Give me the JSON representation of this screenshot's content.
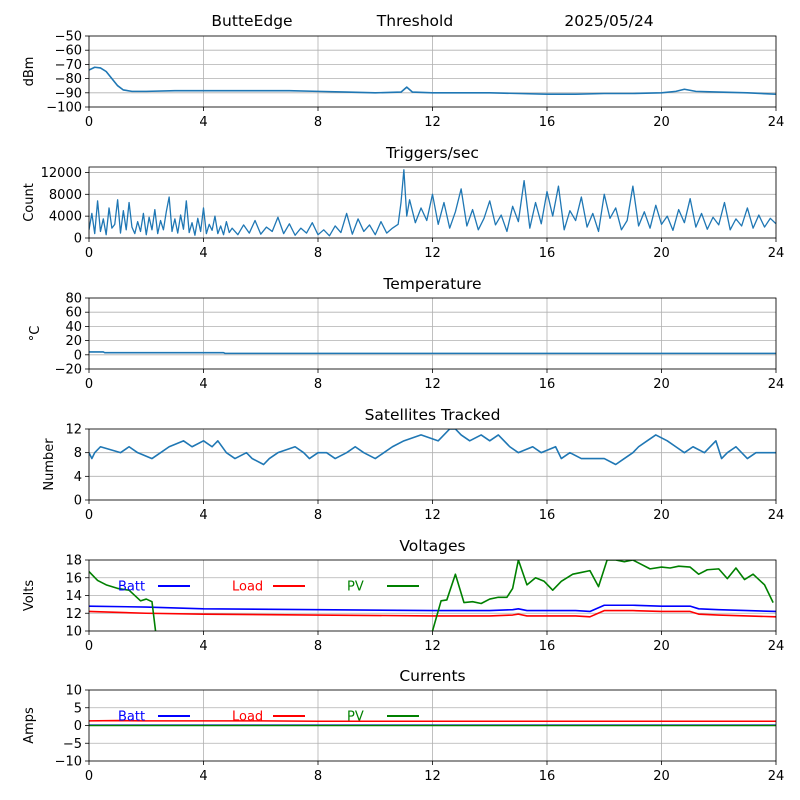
{
  "header": {
    "station": "ButteEdge",
    "label": "Threshold",
    "date": "2025/05/24"
  },
  "chart_data": [
    {
      "id": "threshold",
      "type": "line",
      "title": "",
      "ylabel": "dBm",
      "xlim": [
        0,
        24
      ],
      "xticks": [
        0,
        4,
        8,
        12,
        16,
        20,
        24
      ],
      "ylim": [
        -100,
        -50
      ],
      "yticks": [
        -100,
        -90,
        -80,
        -70,
        -60,
        -50
      ],
      "grid": true,
      "series": [
        {
          "color": "#1f77b4",
          "x": [
            0,
            0.2,
            0.4,
            0.6,
            0.8,
            1.0,
            1.2,
            1.5,
            2,
            3,
            4,
            5,
            6,
            7,
            8,
            9,
            10,
            10.9,
            11.1,
            11.3,
            12,
            13,
            14,
            15,
            16,
            17,
            18,
            19,
            20,
            20.5,
            20.8,
            21.2,
            22,
            23,
            24
          ],
          "y": [
            -74,
            -72,
            -72.5,
            -75,
            -80,
            -85,
            -88,
            -89,
            -89,
            -88.5,
            -88.5,
            -88.5,
            -88.5,
            -88.5,
            -89,
            -89.5,
            -90,
            -89.5,
            -86,
            -89.5,
            -90,
            -90,
            -90,
            -90.5,
            -91,
            -91,
            -90.5,
            -90.5,
            -90,
            -89,
            -87.5,
            -89,
            -89.5,
            -90,
            -91
          ]
        }
      ]
    },
    {
      "id": "triggers",
      "type": "line",
      "title": "Triggers/sec",
      "ylabel": "Count",
      "xlim": [
        0,
        24
      ],
      "xticks": [
        0,
        4,
        8,
        12,
        16,
        20,
        24
      ],
      "ylim": [
        0,
        13000
      ],
      "yticks": [
        0,
        4000,
        8000,
        12000
      ],
      "grid": true,
      "series": [
        {
          "color": "#1f77b4",
          "x": [
            0,
            0.1,
            0.2,
            0.3,
            0.4,
            0.5,
            0.6,
            0.7,
            0.8,
            0.9,
            1.0,
            1.1,
            1.2,
            1.3,
            1.4,
            1.5,
            1.6,
            1.7,
            1.8,
            1.9,
            2.0,
            2.1,
            2.2,
            2.3,
            2.4,
            2.5,
            2.6,
            2.7,
            2.8,
            2.9,
            3.0,
            3.1,
            3.2,
            3.3,
            3.4,
            3.5,
            3.6,
            3.7,
            3.8,
            3.9,
            4.0,
            4.1,
            4.2,
            4.3,
            4.4,
            4.5,
            4.6,
            4.7,
            4.8,
            4.9,
            5.0,
            5.2,
            5.4,
            5.6,
            5.8,
            6.0,
            6.2,
            6.4,
            6.6,
            6.8,
            7.0,
            7.2,
            7.4,
            7.6,
            7.8,
            8.0,
            8.2,
            8.4,
            8.6,
            8.8,
            9.0,
            9.2,
            9.4,
            9.6,
            9.8,
            10.0,
            10.2,
            10.4,
            10.6,
            10.8,
            10.9,
            11.0,
            11.1,
            11.2,
            11.4,
            11.6,
            11.8,
            12.0,
            12.2,
            12.4,
            12.6,
            12.8,
            13.0,
            13.2,
            13.4,
            13.6,
            13.8,
            14.0,
            14.2,
            14.4,
            14.6,
            14.8,
            15.0,
            15.2,
            15.4,
            15.6,
            15.8,
            16.0,
            16.2,
            16.4,
            16.6,
            16.8,
            17.0,
            17.2,
            17.4,
            17.6,
            17.8,
            18.0,
            18.2,
            18.4,
            18.6,
            18.8,
            19.0,
            19.2,
            19.4,
            19.6,
            19.8,
            20.0,
            20.2,
            20.4,
            20.6,
            20.8,
            21.0,
            21.2,
            21.4,
            21.6,
            21.8,
            22.0,
            22.2,
            22.4,
            22.6,
            22.8,
            23.0,
            23.2,
            23.4,
            23.6,
            23.8,
            24.0
          ],
          "y": [
            1500,
            4500,
            800,
            6800,
            1200,
            3500,
            600,
            5500,
            1800,
            2500,
            7000,
            900,
            5000,
            1500,
            6500,
            2000,
            800,
            3000,
            1200,
            4500,
            600,
            3800,
            1500,
            5200,
            800,
            3200,
            1500,
            4800,
            7500,
            1200,
            3500,
            900,
            4200,
            1600,
            6800,
            1000,
            2800,
            500,
            3600,
            1200,
            5500,
            800,
            2500,
            1400,
            4000,
            800,
            2200,
            600,
            3000,
            1000,
            1800,
            600,
            2400,
            900,
            3200,
            700,
            2000,
            1200,
            3800,
            800,
            2600,
            500,
            1800,
            900,
            2800,
            600,
            1500,
            400,
            2200,
            1000,
            4500,
            700,
            3500,
            1200,
            2400,
            600,
            3000,
            900,
            1800,
            2500,
            6500,
            12500,
            4000,
            7000,
            2800,
            5500,
            3200,
            8000,
            2500,
            6500,
            1800,
            4800,
            9000,
            2200,
            5200,
            1500,
            3600,
            6800,
            2400,
            4200,
            1200,
            5800,
            3000,
            10500,
            1800,
            6500,
            2600,
            8500,
            4000,
            9500,
            1500,
            5000,
            3200,
            7500,
            2000,
            4500,
            1200,
            8000,
            3600,
            5500,
            1500,
            3200,
            9500,
            2200,
            4800,
            1800,
            6000,
            2500,
            4000,
            1400,
            5200,
            2800,
            7200,
            2000,
            4500,
            1600,
            3800,
            2400,
            6500,
            1500,
            3500,
            2200,
            5500,
            1800,
            4200,
            2000,
            3600,
            2600
          ]
        }
      ]
    },
    {
      "id": "temperature",
      "type": "line",
      "title": "Temperature",
      "ylabel": "°C",
      "xlim": [
        0,
        24
      ],
      "xticks": [
        0,
        4,
        8,
        12,
        16,
        20,
        24
      ],
      "ylim": [
        -20,
        80
      ],
      "yticks": [
        -20,
        0,
        20,
        40,
        60,
        80
      ],
      "grid": true,
      "series": [
        {
          "color": "#1f77b4",
          "x": [
            0,
            0.5,
            0.55,
            4.7,
            4.75,
            24
          ],
          "y": [
            4,
            4,
            3,
            3,
            2,
            2
          ]
        }
      ]
    },
    {
      "id": "satellites",
      "type": "line",
      "title": "Satellites Tracked",
      "ylabel": "Number",
      "xlim": [
        0,
        24
      ],
      "xticks": [
        0,
        4,
        8,
        12,
        16,
        20,
        24
      ],
      "ylim": [
        0,
        12
      ],
      "yticks": [
        0,
        4,
        8,
        12
      ],
      "grid": true,
      "series": [
        {
          "color": "#1f77b4",
          "x": [
            0,
            0.1,
            0.2,
            0.4,
            1.1,
            1.4,
            1.7,
            2.2,
            2.5,
            2.8,
            3.3,
            3.6,
            4.0,
            4.3,
            4.5,
            4.8,
            5.1,
            5.5,
            5.7,
            6.1,
            6.3,
            6.6,
            7.2,
            7.5,
            7.7,
            8.0,
            8.3,
            8.6,
            9.0,
            9.3,
            9.6,
            10.0,
            10.3,
            10.6,
            11.0,
            11.6,
            12.2,
            12.6,
            12.8,
            13.0,
            13.3,
            13.7,
            14.0,
            14.3,
            14.7,
            15.0,
            15.5,
            15.8,
            16.3,
            16.5,
            16.8,
            17.2,
            17.6,
            18.0,
            18.4,
            18.7,
            19.0,
            19.2,
            19.5,
            19.8,
            20.2,
            20.5,
            20.8,
            21.1,
            21.5,
            21.9,
            22.1,
            22.3,
            22.6,
            23.0,
            23.3,
            24.0
          ],
          "y": [
            8,
            7,
            8,
            9,
            8,
            9,
            8,
            7,
            8,
            9,
            10,
            9,
            10,
            9,
            10,
            8,
            7,
            8,
            7,
            6,
            7,
            8,
            9,
            8,
            7,
            8,
            8,
            7,
            8,
            9,
            8,
            7,
            8,
            9,
            10,
            11,
            10,
            12,
            12,
            11,
            10,
            11,
            10,
            11,
            9,
            8,
            9,
            8,
            9,
            7,
            8,
            7,
            7,
            7,
            6,
            7,
            8,
            9,
            10,
            11,
            10,
            9,
            8,
            9,
            8,
            10,
            7,
            8,
            9,
            7,
            8,
            8
          ]
        }
      ]
    },
    {
      "id": "voltages",
      "type": "line",
      "title": "Voltages",
      "ylabel": "Volts",
      "xlim": [
        0,
        24
      ],
      "xticks": [
        0,
        4,
        8,
        12,
        16,
        20,
        24
      ],
      "ylim": [
        10,
        18
      ],
      "yticks": [
        10,
        12,
        14,
        16,
        18
      ],
      "grid": true,
      "legend": "top-left",
      "series": [
        {
          "name": "Batt",
          "color": "#0000ff",
          "x": [
            0,
            2,
            4,
            8,
            12,
            14,
            14.8,
            15.0,
            15.3,
            16,
            17,
            17.5,
            18.0,
            18.5,
            19.0,
            20,
            21.0,
            21.3,
            22,
            23,
            24
          ],
          "y": [
            12.8,
            12.7,
            12.5,
            12.4,
            12.3,
            12.3,
            12.4,
            12.5,
            12.3,
            12.3,
            12.3,
            12.2,
            12.9,
            12.9,
            12.9,
            12.8,
            12.8,
            12.5,
            12.4,
            12.3,
            12.2
          ]
        },
        {
          "name": "Load",
          "color": "#ff0000",
          "x": [
            0,
            2,
            4,
            8,
            12,
            14,
            14.8,
            15.0,
            15.3,
            16,
            17,
            17.5,
            18.0,
            18.5,
            19.0,
            20,
            21.0,
            21.3,
            22,
            23,
            24
          ],
          "y": [
            12.2,
            12.0,
            11.9,
            11.8,
            11.7,
            11.7,
            11.8,
            11.9,
            11.7,
            11.7,
            11.7,
            11.6,
            12.3,
            12.3,
            12.3,
            12.2,
            12.2,
            11.9,
            11.8,
            11.7,
            11.6
          ],
          "_": null
        },
        {
          "name": "PV",
          "color": "#008000",
          "x": [
            0,
            0.3,
            0.6,
            1.0,
            1.4,
            1.8,
            2.0,
            2.2,
            2.4,
            11.8,
            12.0,
            12.3,
            12.5,
            12.8,
            13.1,
            13.4,
            13.7,
            14.0,
            14.3,
            14.6,
            14.8,
            15.0,
            15.3,
            15.6,
            15.9,
            16.2,
            16.5,
            16.9,
            17.2,
            17.5,
            17.8,
            18.1,
            18.4,
            18.7,
            19.0,
            19.3,
            19.6,
            20.0,
            20.3,
            20.6,
            21.0,
            21.3,
            21.6,
            22.0,
            22.3,
            22.6,
            22.9,
            23.2,
            23.6,
            23.9
          ],
          "y": [
            16.7,
            15.7,
            15.2,
            14.8,
            14.6,
            13.4,
            13.6,
            13.3,
            8.0,
            8.0,
            10.0,
            13.4,
            13.5,
            16.4,
            13.2,
            13.3,
            13.1,
            13.6,
            13.8,
            13.8,
            14.8,
            18.0,
            15.2,
            16.0,
            15.6,
            14.6,
            15.6,
            16.4,
            16.6,
            16.8,
            15.0,
            18.0,
            18.0,
            17.8,
            18.0,
            17.5,
            17.0,
            17.2,
            17.1,
            17.3,
            17.2,
            16.4,
            16.9,
            17.0,
            15.9,
            17.1,
            15.8,
            16.4,
            15.2,
            13.2
          ]
        }
      ]
    },
    {
      "id": "currents",
      "type": "line",
      "title": "Currents",
      "ylabel": "Amps",
      "xlim": [
        0,
        24
      ],
      "xticks": [
        0,
        4,
        8,
        12,
        16,
        20,
        24
      ],
      "ylim": [
        -10,
        10
      ],
      "yticks": [
        -10,
        -5,
        0,
        5,
        10
      ],
      "grid": true,
      "legend": "top-left",
      "series": [
        {
          "name": "Batt",
          "color": "#0000ff",
          "x": [
            0,
            24
          ],
          "y": [
            0.1,
            0.1
          ]
        },
        {
          "name": "Load",
          "color": "#ff0000",
          "x": [
            0,
            1,
            2,
            4,
            6,
            8,
            10,
            12,
            14,
            16,
            18,
            20,
            22,
            24
          ],
          "y": [
            1.3,
            1.4,
            1.3,
            1.3,
            1.3,
            1.2,
            1.2,
            1.2,
            1.2,
            1.2,
            1.2,
            1.2,
            1.2,
            1.2
          ]
        },
        {
          "name": "PV",
          "color": "#008000",
          "x": [
            0,
            24
          ],
          "y": [
            0,
            0
          ]
        }
      ]
    }
  ]
}
